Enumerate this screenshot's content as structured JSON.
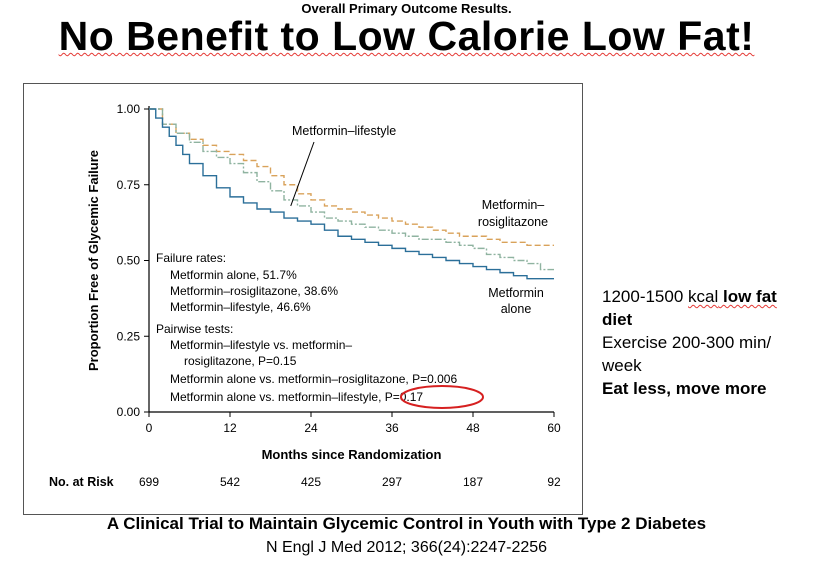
{
  "slide": {
    "subtitle": "Overall Primary Outcome Results.",
    "headline": "No Benefit to Low Calorie Low Fat!",
    "side_text": {
      "line1_prefix": "1200-1500 ",
      "line1_kcal": "kcal",
      "line1_bold": " low fat",
      "line2_bold": "diet",
      "line3": "Exercise 200-300 min/",
      "line4": "week",
      "line5_bold": "Eat less, move more"
    },
    "citation_line1": "A Clinical Trial to Maintain Glycemic Control in Youth with Type 2 Diabetes",
    "citation_line2": "N Engl J Med 2012; 366(24):2247-2256"
  },
  "colors": {
    "metformin_alone": "#2b6f99",
    "metformin_rosiglitazone": "#d9a25a",
    "metformin_lifestyle": "#8fb3a0",
    "highlight_circle": "#d62020"
  },
  "chart_data": {
    "type": "line",
    "xlabel": "Months since Randomization",
    "ylabel": "Proportion Free of Glycemic Failure",
    "x_ticks": [
      0,
      12,
      24,
      36,
      48,
      60
    ],
    "y_ticks": [
      "0.00",
      "0.25",
      "0.50",
      "0.75",
      "1.00"
    ],
    "xlim": [
      0,
      60
    ],
    "ylim": [
      0,
      1
    ],
    "series": [
      {
        "name": "Metformin alone",
        "label_lines": [
          "Metformin",
          "alone"
        ],
        "style": "solid",
        "x": [
          0,
          1,
          2,
          3,
          4,
          5,
          6,
          8,
          10,
          12,
          14,
          16,
          18,
          20,
          22,
          24,
          26,
          28,
          30,
          32,
          34,
          36,
          38,
          40,
          42,
          44,
          46,
          48,
          50,
          52,
          54,
          56,
          58,
          60
        ],
        "y": [
          1.0,
          0.97,
          0.94,
          0.91,
          0.88,
          0.85,
          0.82,
          0.78,
          0.74,
          0.71,
          0.69,
          0.67,
          0.66,
          0.64,
          0.63,
          0.62,
          0.6,
          0.58,
          0.57,
          0.56,
          0.55,
          0.54,
          0.53,
          0.52,
          0.51,
          0.5,
          0.49,
          0.48,
          0.47,
          0.46,
          0.45,
          0.44,
          0.44,
          0.44
        ]
      },
      {
        "name": "Metformin–rosiglitazone",
        "label_lines": [
          "Metformin–",
          "rosiglitazone"
        ],
        "style": "dashed",
        "x": [
          0,
          2,
          4,
          6,
          8,
          10,
          12,
          14,
          16,
          18,
          20,
          22,
          24,
          26,
          28,
          30,
          32,
          34,
          36,
          38,
          40,
          42,
          44,
          46,
          48,
          50,
          52,
          54,
          56,
          58,
          60
        ],
        "y": [
          1.0,
          0.95,
          0.92,
          0.9,
          0.88,
          0.86,
          0.85,
          0.83,
          0.81,
          0.78,
          0.75,
          0.72,
          0.7,
          0.68,
          0.67,
          0.66,
          0.65,
          0.64,
          0.63,
          0.62,
          0.61,
          0.6,
          0.59,
          0.58,
          0.58,
          0.57,
          0.56,
          0.56,
          0.55,
          0.55,
          0.55
        ]
      },
      {
        "name": "Metformin–lifestyle",
        "label_lines": [
          "Metformin–lifestyle"
        ],
        "style": "dashdot",
        "x": [
          0,
          2,
          4,
          6,
          8,
          10,
          12,
          14,
          16,
          18,
          20,
          22,
          24,
          26,
          28,
          30,
          32,
          34,
          36,
          38,
          40,
          42,
          44,
          46,
          48,
          50,
          52,
          54,
          56,
          58,
          60
        ],
        "y": [
          1.0,
          0.95,
          0.92,
          0.89,
          0.86,
          0.84,
          0.82,
          0.79,
          0.76,
          0.73,
          0.7,
          0.68,
          0.66,
          0.64,
          0.63,
          0.62,
          0.61,
          0.6,
          0.59,
          0.58,
          0.57,
          0.57,
          0.56,
          0.55,
          0.54,
          0.52,
          0.51,
          0.5,
          0.49,
          0.47,
          0.47
        ]
      }
    ],
    "failure_rates": {
      "heading": "Failure rates:",
      "lines": [
        "Metformin alone, 51.7%",
        "Metformin–rosiglitazone, 38.6%",
        "Metformin–lifestyle, 46.6%"
      ]
    },
    "pairwise_tests": {
      "heading": "Pairwise tests:",
      "lines": [
        "Metformin–lifestyle vs. metformin–",
        "rosiglitazone, P=0.15",
        "Metformin alone vs. metformin–rosiglitazone, P=0.006",
        "Metformin alone vs. metformin–lifestyle, P=0.17"
      ]
    },
    "at_risk": {
      "label": "No. at Risk",
      "values": [
        "699",
        "542",
        "425",
        "297",
        "187",
        "92"
      ]
    }
  }
}
